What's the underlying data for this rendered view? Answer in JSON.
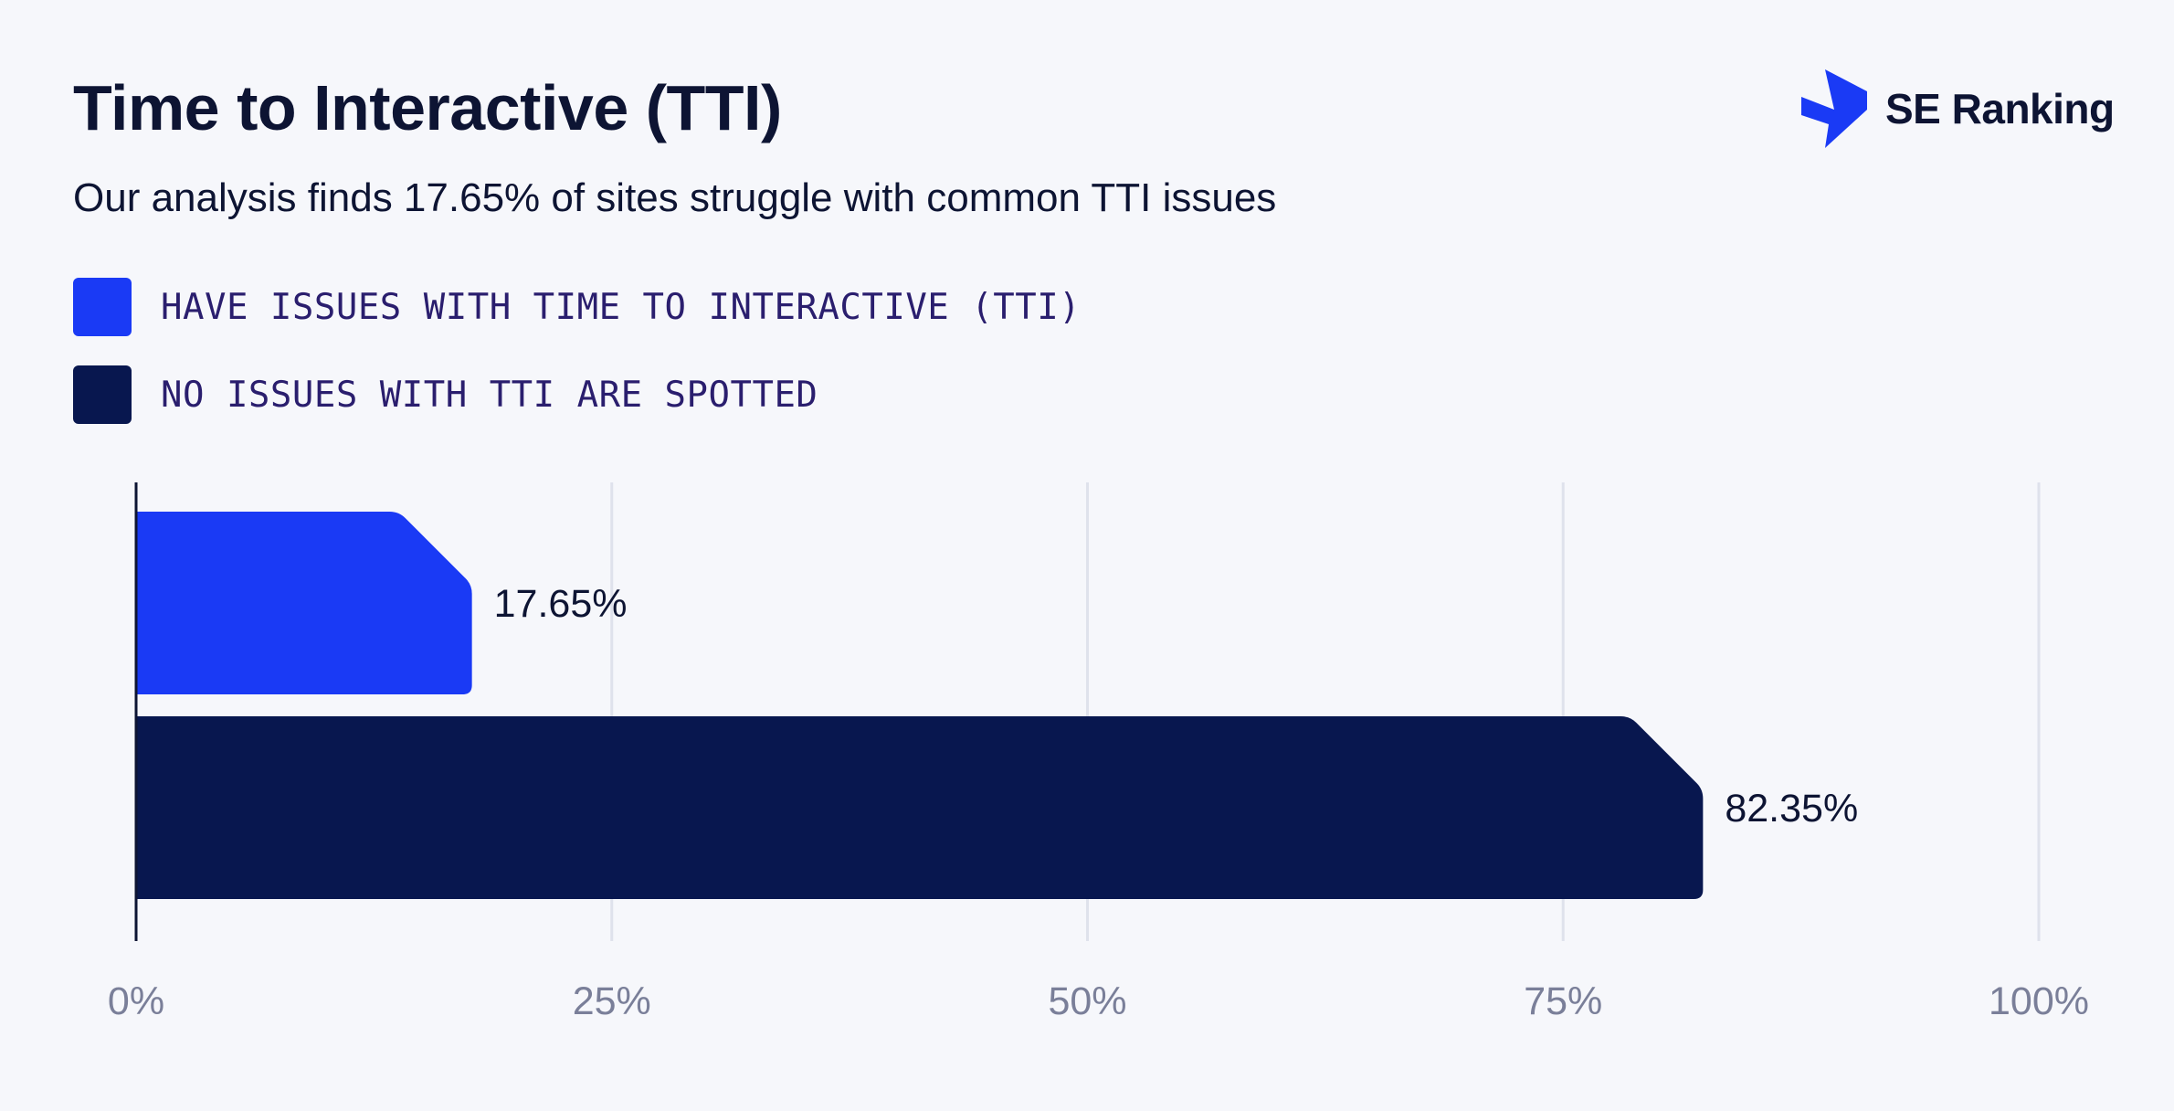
{
  "header": {
    "title": "Time to Interactive (TTI)",
    "subtitle": "Our analysis finds 17.65% of sites struggle with common TTI issues"
  },
  "brand": {
    "name": "SE Ranking",
    "logo_icon": "se-ranking-lightning-icon",
    "color": "#1a3af5"
  },
  "legend": {
    "items": [
      {
        "label": "HAVE ISSUES WITH TIME TO INTERACTIVE (TTI)",
        "color": "#1a3af5"
      },
      {
        "label": "NO ISSUES WITH TTI ARE SPOTTED",
        "color": "#08174f"
      }
    ]
  },
  "chart_data": {
    "type": "bar",
    "orientation": "horizontal",
    "title": "Time to Interactive (TTI)",
    "subtitle": "Our analysis finds 17.65% of sites struggle with common TTI issues",
    "categories": [
      "HAVE ISSUES WITH TIME TO INTERACTIVE (TTI)",
      "NO ISSUES WITH TTI ARE SPOTTED"
    ],
    "values": [
      17.65,
      82.35
    ],
    "data_labels": [
      "17.65%",
      "82.35%"
    ],
    "colors": [
      "#1a3af5",
      "#08174f"
    ],
    "xlim": [
      0,
      100
    ],
    "xticks": [
      0,
      25,
      50,
      75,
      100
    ],
    "xtick_labels": [
      "0%",
      "25%",
      "50%",
      "75%",
      "100%"
    ],
    "grid": true,
    "legend_position": "top-left",
    "gridline_color": "#dfe2ec",
    "tick_label_color": "#7a7f99"
  }
}
